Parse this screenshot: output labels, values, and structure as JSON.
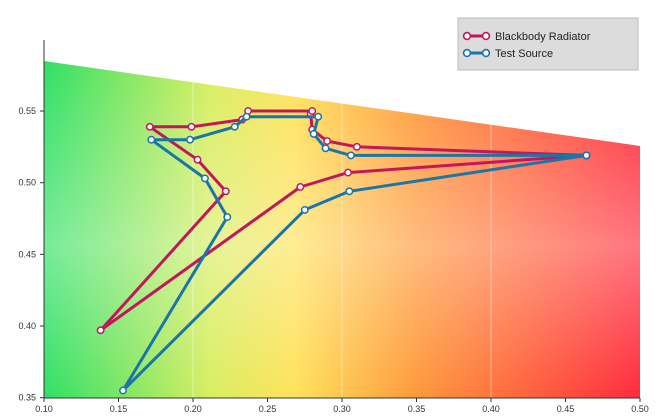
{
  "chart_data": {
    "type": "line",
    "title": "",
    "xlabel": "",
    "ylabel": "",
    "xlim": [
      0.1,
      0.5
    ],
    "ylim": [
      0.35,
      0.59
    ],
    "x_ticks": [
      "0.10",
      "0.15",
      "0.20",
      "0.25",
      "0.30",
      "0.35",
      "0.40",
      "0.45",
      "0.50"
    ],
    "y_ticks": [
      "0.35",
      "0.40",
      "0.45",
      "0.50",
      "0.55"
    ],
    "grid": "vertical",
    "legend_position": "top-right",
    "series": [
      {
        "name": "Blackbody Radiator",
        "color": "#c2185b",
        "points": [
          [
            0.464,
            0.519
          ],
          [
            0.31,
            0.525
          ],
          [
            0.29,
            0.529
          ],
          [
            0.28,
            0.537
          ],
          [
            0.279,
            0.548
          ],
          [
            0.28,
            0.55
          ],
          [
            0.237,
            0.55
          ],
          [
            0.233,
            0.544
          ],
          [
            0.199,
            0.539
          ],
          [
            0.171,
            0.539
          ],
          [
            0.203,
            0.516
          ],
          [
            0.222,
            0.494
          ],
          [
            0.138,
            0.397
          ],
          [
            0.272,
            0.497
          ],
          [
            0.304,
            0.507
          ],
          [
            0.464,
            0.519
          ]
        ]
      },
      {
        "name": "Test Source",
        "color": "#1b75a8",
        "points": [
          [
            0.464,
            0.519
          ],
          [
            0.306,
            0.519
          ],
          [
            0.289,
            0.524
          ],
          [
            0.281,
            0.534
          ],
          [
            0.284,
            0.546
          ],
          [
            0.236,
            0.546
          ],
          [
            0.228,
            0.539
          ],
          [
            0.198,
            0.53
          ],
          [
            0.172,
            0.53
          ],
          [
            0.208,
            0.503
          ],
          [
            0.223,
            0.476
          ],
          [
            0.153,
            0.355
          ],
          [
            0.275,
            0.481
          ],
          [
            0.305,
            0.494
          ],
          [
            0.464,
            0.519
          ]
        ]
      }
    ],
    "legend": {
      "entries": [
        "Blackbody Radiator",
        "Test Source"
      ]
    }
  }
}
